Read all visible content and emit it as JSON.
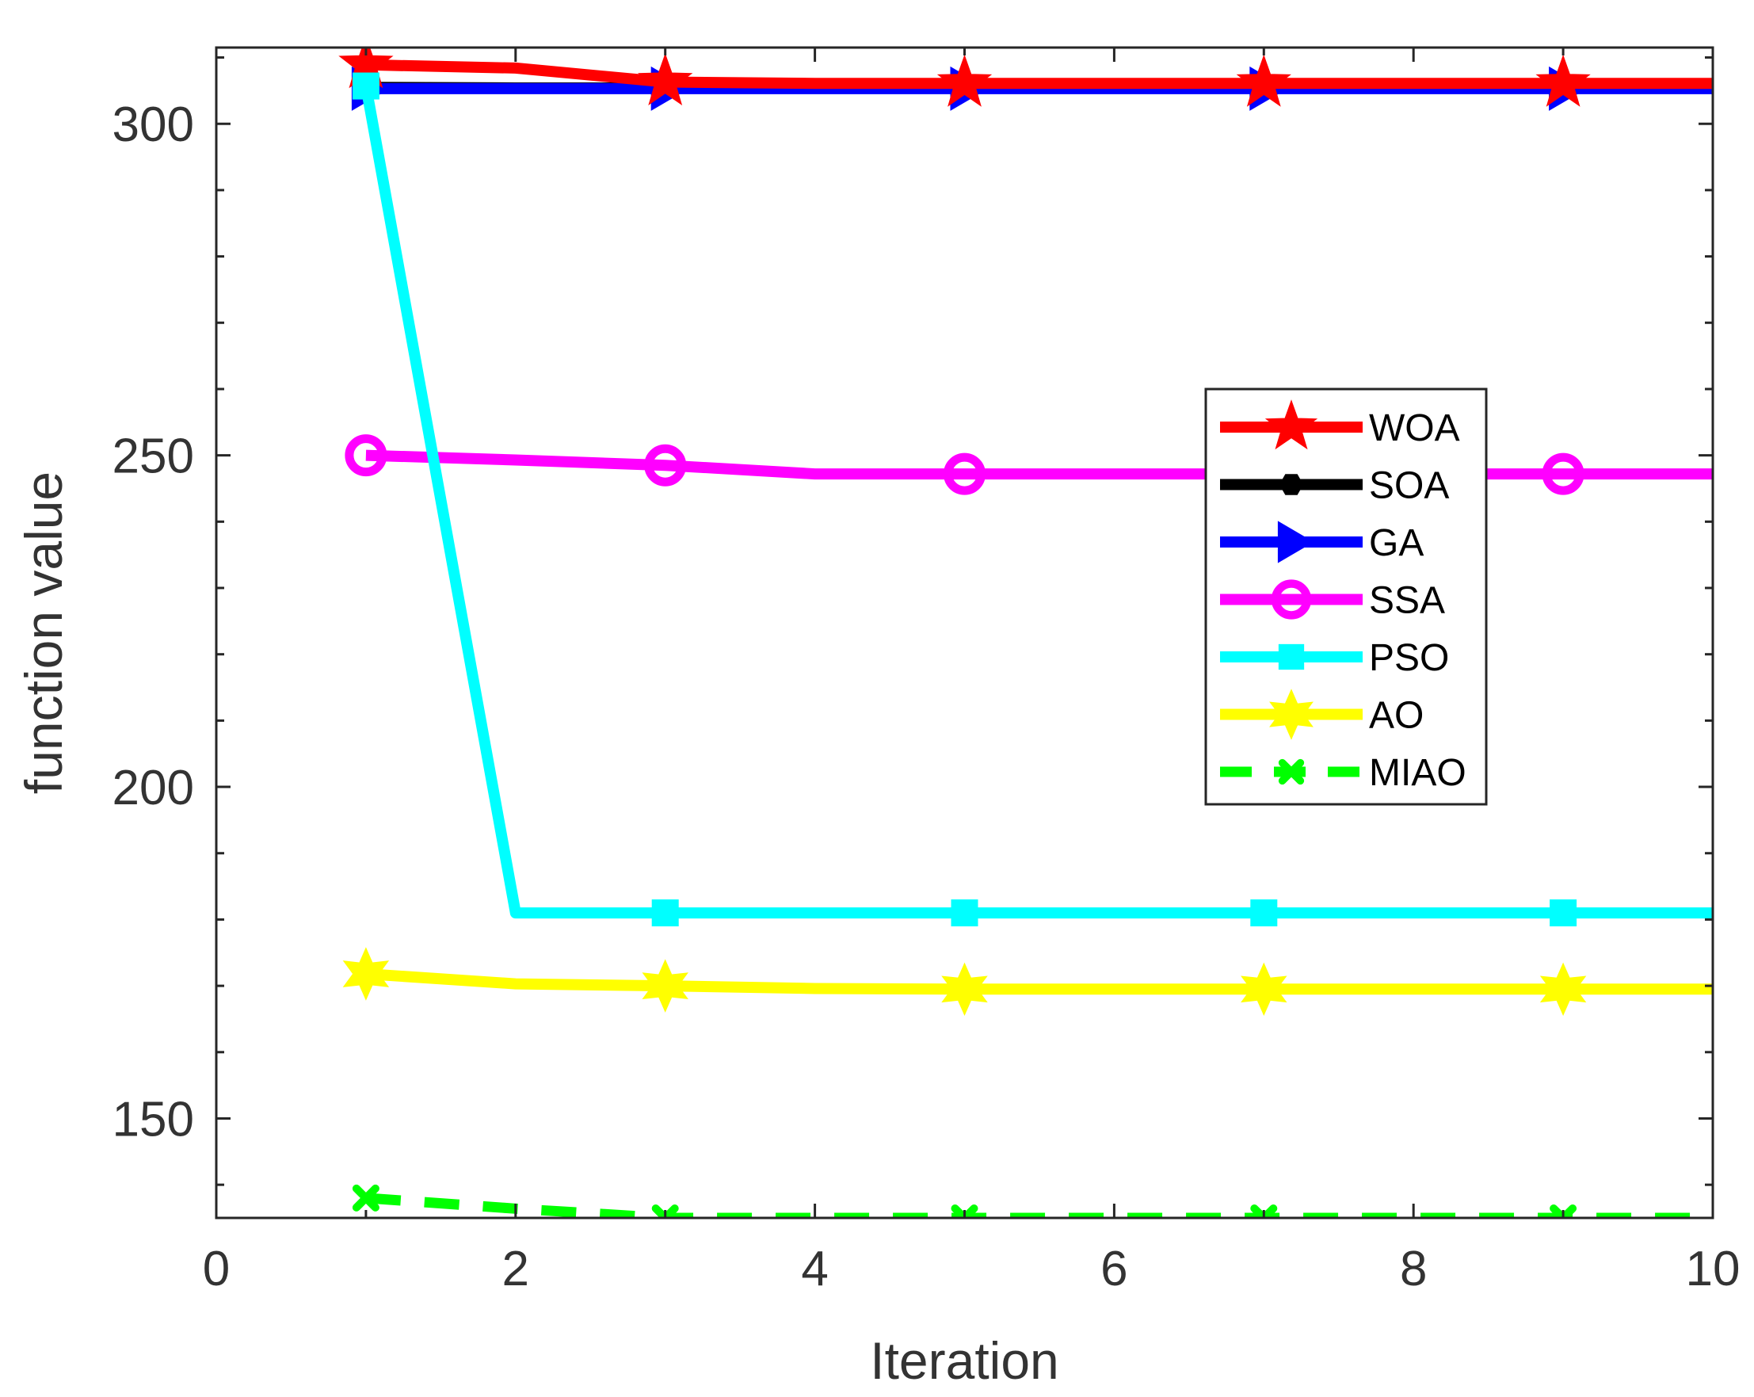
{
  "chart_data": {
    "type": "line",
    "title": "",
    "xlabel": "Iteration",
    "ylabel": "function value",
    "xlim": [
      0,
      10
    ],
    "ylim": [
      135,
      311.5
    ],
    "xticks": [
      0,
      2,
      4,
      6,
      8,
      10
    ],
    "xtick_labels": [
      "0",
      "2",
      "4",
      "6",
      "8",
      "10"
    ],
    "yticks": [
      150,
      200,
      250,
      300
    ],
    "ytick_labels": [
      "150",
      "200",
      "250",
      "300"
    ],
    "grid": false,
    "legend_position": "right-middle",
    "x": [
      1,
      2,
      3,
      4,
      5,
      6,
      7,
      8,
      9,
      10
    ],
    "series": [
      {
        "name": "WOA",
        "color": "#ff0000",
        "marker": "star",
        "line": "solid",
        "values": [
          308.9,
          308.4,
          306.3,
          306.1,
          306.1,
          306.1,
          306.1,
          306.1,
          306.1,
          306.1
        ]
      },
      {
        "name": "SOA",
        "color": "#000000",
        "marker": "hexagon",
        "line": "solid",
        "values": [
          305.5,
          305.4,
          305.4,
          305.4,
          305.4,
          305.4,
          305.4,
          305.4,
          305.4,
          305.4
        ]
      },
      {
        "name": "GA",
        "color": "#0000ff",
        "marker": "triangle-right",
        "line": "solid",
        "values": [
          305.3,
          305.3,
          305.3,
          305.3,
          305.3,
          305.3,
          305.3,
          305.3,
          305.3,
          305.3
        ]
      },
      {
        "name": "SSA",
        "color": "#ff00ff",
        "marker": "circle",
        "line": "solid",
        "values": [
          250,
          249.3,
          248.5,
          247.2,
          247.2,
          247.2,
          247.2,
          247.2,
          247.2,
          247.2
        ]
      },
      {
        "name": "PSO",
        "color": "#00ffff",
        "marker": "square",
        "line": "solid",
        "values": [
          305.7,
          181,
          181,
          181,
          181,
          181,
          181,
          181,
          181,
          181
        ]
      },
      {
        "name": "AO",
        "color": "#ffff00",
        "marker": "star6",
        "line": "solid",
        "values": [
          171.8,
          170.3,
          170,
          169.6,
          169.5,
          169.5,
          169.5,
          169.5,
          169.5,
          169.5
        ]
      },
      {
        "name": "MIAO",
        "color": "#00ff00",
        "marker": "x",
        "line": "dashed",
        "values": [
          138,
          136.4,
          135,
          135,
          135,
          135,
          135,
          135,
          135,
          135
        ]
      }
    ]
  }
}
